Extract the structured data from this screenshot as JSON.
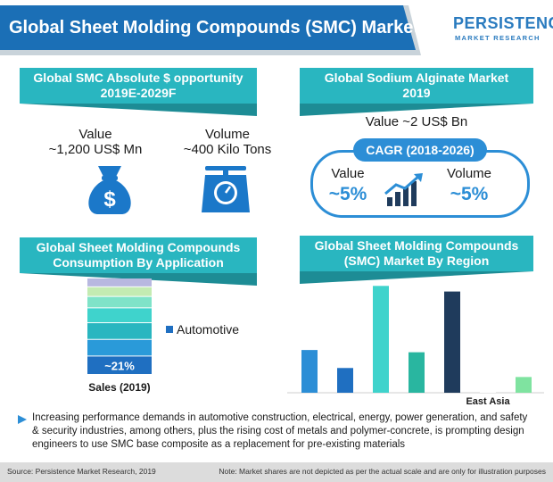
{
  "header": {
    "title": "Global Sheet Molding Compounds (SMC) Market",
    "logo_main": "PERSISTENCE",
    "logo_sub": "MARKET RESEARCH"
  },
  "panel_opportunity": {
    "title_line1": "Global SMC Absolute $ opportunity",
    "title_line2": "2019E-2029F",
    "value_label": "Value",
    "value_amount": "~1,200 US$ Mn",
    "volume_label": "Volume",
    "volume_amount": "~400 Kilo Tons",
    "money_icon": "money-bag-icon",
    "scale_icon": "weighing-scale-icon"
  },
  "panel_alginate": {
    "title_line1": "Global Sodium Alginate Market",
    "title_line2": "2019",
    "value_text": "Value ~2 US$ Bn",
    "cagr_title": "CAGR (2018-2026)",
    "cagr_value_label": "Value",
    "cagr_value": "~5%",
    "cagr_volume_label": "Volume",
    "cagr_volume": "~5%",
    "growth_icon": "growth-chart-icon"
  },
  "panel_consumption": {
    "title_line1": "Global Sheet Molding Compounds",
    "title_line2": "Consumption By Application"
  },
  "panel_region": {
    "title_line1": "Global Sheet Molding Compounds",
    "title_line2": "(SMC) Market By Region"
  },
  "description": "Increasing performance demands in  automotive construction, electrical, energy, power generation, and safety & security industries, among others, plus the rising cost of metals and polymer-concrete, is prompting design engineers to use SMC base composite as a replacement for pre-existing materials",
  "footer": {
    "source": "Source: Persistence Market Research, 2019",
    "note": "Note: Market shares are not depicted as per the actual scale and are only for illustration purposes"
  },
  "colors": {
    "teal": "#29b6c0",
    "blue": "#2c8ed6",
    "dark_navy": "#1f3b5c",
    "header_blue": "#1b6fb6"
  },
  "chart_data": [
    {
      "type": "bar",
      "title": "Global Sheet Molding Compounds Consumption By Application",
      "stacked": true,
      "categories": [
        "Sales (2019)"
      ],
      "series": [
        {
          "name": "Automotive",
          "values": [
            21
          ],
          "label": "~21%",
          "color": "#1f6fc1"
        },
        {
          "name": "",
          "values": [
            19
          ],
          "color": "#2a9ad9"
        },
        {
          "name": "",
          "values": [
            19
          ],
          "color": "#29b6c0"
        },
        {
          "name": "",
          "values": [
            17
          ],
          "color": "#3fd3cc"
        },
        {
          "name": "",
          "values": [
            13
          ],
          "color": "#7fe3c8"
        },
        {
          "name": "",
          "values": [
            11
          ],
          "color": "#c4ebb2"
        },
        {
          "name": "",
          "values": [
            10
          ],
          "color": "#b8b8e0"
        }
      ],
      "ylim": [
        0,
        110
      ],
      "legend": "right"
    },
    {
      "type": "bar",
      "title": "Global Sheet Molding Compounds (SMC) Market By Region",
      "categories": [
        "",
        "",
        "",
        "",
        "",
        "East Asia",
        ""
      ],
      "values": [
        38,
        22,
        95,
        36,
        90,
        4,
        14
      ],
      "colors": [
        "#2c8ed6",
        "#1f6fc1",
        "#3fd3cc",
        "#29b6a0",
        "#1f3b5c",
        "#ffffff",
        "#7fe3a0"
      ],
      "ylim": [
        0,
        100
      ]
    }
  ]
}
